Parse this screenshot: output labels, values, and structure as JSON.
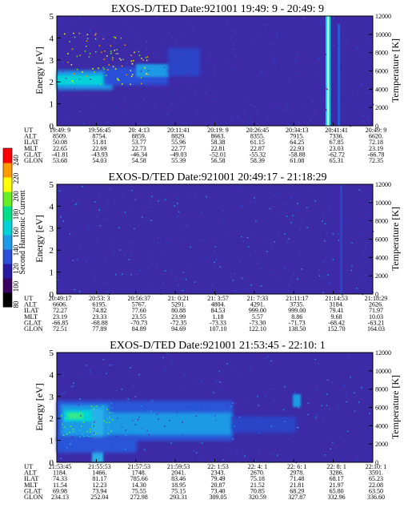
{
  "colorbar": {
    "label": "Second Harmonic Current",
    "ticks": [
      80,
      100,
      120,
      140,
      160,
      180,
      200,
      220,
      240
    ],
    "colors": [
      "#000000",
      "#3a0062",
      "#2a1aa2",
      "#2a4fd8",
      "#1f9ae6",
      "#00d2d8",
      "#00e08a",
      "#66ee22",
      "#ffff00",
      "#ff9a00",
      "#ff0000"
    ]
  },
  "chart_data": [
    {
      "type": "heatmap",
      "title": "EXOS-D/TED   Date:921001  19:49: 9 - 20:49: 9",
      "ylabel": "Energy [eV]",
      "y2label": "Temperature [K]",
      "ylim": [
        0,
        5
      ],
      "yticks": [
        "0",
        "1",
        "2",
        "3",
        "4",
        "5"
      ],
      "y2lim": [
        0,
        12000
      ],
      "y2ticks": [
        "0",
        "2000",
        "4000",
        "6000",
        "8000",
        "10000",
        "12000"
      ],
      "orbit_rows": [
        {
          "label": "UT",
          "values": [
            "19:49: 9",
            "19:56:45",
            "20: 4:13",
            "20:11:41",
            "20:19: 9",
            "20:26:45",
            "20:34:13",
            "20:41:41",
            "20:49: 9"
          ]
        },
        {
          "label": "ALT",
          "values": [
            "8509.",
            "8754.",
            "8859.",
            "8829.",
            "8663.",
            "8355.",
            "7915.",
            "7336.",
            "6620."
          ]
        },
        {
          "label": "ILAT",
          "values": [
            "50.08",
            "51.81",
            "53.77",
            "55.96",
            "58.38",
            "61.15",
            "64.25",
            "67.85",
            "72.18"
          ]
        },
        {
          "label": "MLT",
          "values": [
            "22.65",
            "22.69",
            "22.73",
            "22.77",
            "22.81",
            "22.87",
            "22.93",
            "23.03",
            "23.19"
          ]
        },
        {
          "label": "GLAT",
          "values": [
            "-41.81",
            "-43.93",
            "-46.34",
            "-49.03",
            "-52.01",
            "-55.32",
            "-58.88",
            "-62.72",
            "-66.78"
          ]
        },
        {
          "label": "GLON",
          "values": [
            "53.68",
            "54.03",
            "54.58",
            "55.39",
            "56.58",
            "58.39",
            "61.08",
            "65.31",
            "72.35"
          ]
        }
      ]
    },
    {
      "type": "heatmap",
      "title": "EXOS-D/TED   Date:921001  20:49:17 - 21:18:29",
      "ylabel": "Energy [eV]",
      "y2label": "Temperature [K]",
      "ylim": [
        0,
        5
      ],
      "yticks": [
        "0",
        "1",
        "2",
        "3",
        "4",
        "5"
      ],
      "y2lim": [
        0,
        12000
      ],
      "y2ticks": [
        "0",
        "2000",
        "4000",
        "6000",
        "8000",
        "10000",
        "12000"
      ],
      "orbit_rows": [
        {
          "label": "UT",
          "values": [
            "20:49:17",
            "20:53: 3",
            "20:56:37",
            "21: 0:21",
            "21: 3:57",
            "21: 7:33",
            "21:11:17",
            "21:14:53",
            "21:18:29"
          ]
        },
        {
          "label": "ALT",
          "values": [
            "6606.",
            "6195.",
            "5767.",
            "5291.",
            "4804.",
            "4291.",
            "3735.",
            "3184.",
            "2626."
          ]
        },
        {
          "label": "ILAT",
          "values": [
            "72.27",
            "74.82",
            "77.60",
            "80.88",
            "84.53",
            "999.00",
            "999.00",
            "79.41",
            "71.97"
          ]
        },
        {
          "label": "MLT",
          "values": [
            "23.19",
            "23.33",
            "23.55",
            "23.99",
            "1.18",
            "5.57",
            "8.86",
            "9.68",
            "10.03"
          ]
        },
        {
          "label": "GLAT",
          "values": [
            "-66.85",
            "-68.88",
            "-70.73",
            "-72.35",
            "-73.33",
            "-73.30",
            "-71.73",
            "-68.42",
            "-63.21"
          ]
        },
        {
          "label": "GLON",
          "values": [
            "72.51",
            "77.89",
            "84.89",
            "94.69",
            "107.10",
            "122.10",
            "138.50",
            "152.70",
            "164.03"
          ]
        }
      ]
    },
    {
      "type": "heatmap",
      "title": "EXOS-D/TED   Date:921001  21:53:45 - 22:10: 1",
      "ylabel": "Energy [eV]",
      "y2label": "Temperature [K]",
      "ylim": [
        0,
        5
      ],
      "yticks": [
        "0",
        "1",
        "2",
        "3",
        "4",
        "5"
      ],
      "y2lim": [
        0,
        12000
      ],
      "y2ticks": [
        "0",
        "2000",
        "4000",
        "6000",
        "8000",
        "10000",
        "12000"
      ],
      "orbit_rows": [
        {
          "label": "UT",
          "values": [
            "21:53:45",
            "21:55:53",
            "21:57:53",
            "21:59:53",
            "22: 1:53",
            "22: 4: 1",
            "22: 6: 1",
            "22: 8: 1",
            "22:10: 1"
          ]
        },
        {
          "label": "ALT",
          "values": [
            "1184.",
            "1466.",
            "1748.",
            "2041.",
            "2343.",
            "2670.",
            "2978.",
            "3286.",
            "3591."
          ]
        },
        {
          "label": "ILAT",
          "values": [
            "74.33",
            "81.17",
            "785.66",
            "83.46",
            "79.49",
            "75.18",
            "71.48",
            "68.17",
            "65.23"
          ]
        },
        {
          "label": "MLT",
          "values": [
            "11.54",
            "12.23",
            "14.30",
            "18.95",
            "20.87",
            "21.52",
            "21.81",
            "21.97",
            "22.08"
          ]
        },
        {
          "label": "GLAT",
          "values": [
            "69.98",
            "73.94",
            "75.55",
            "75.15",
            "73.40",
            "70.85",
            "68.29",
            "65.80",
            "63.50"
          ]
        },
        {
          "label": "GLON",
          "values": [
            "234.13",
            "252.04",
            "272.98",
            "293.31",
            "309.05",
            "320.59",
            "327.87",
            "332.96",
            "336.60"
          ]
        }
      ]
    }
  ]
}
